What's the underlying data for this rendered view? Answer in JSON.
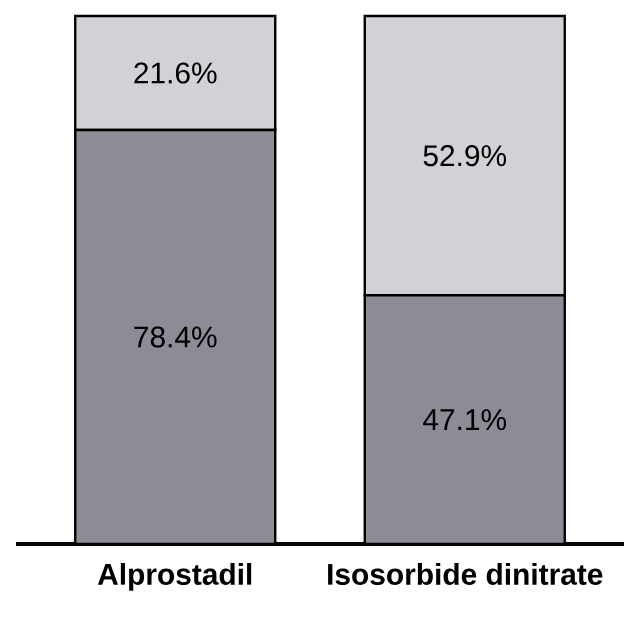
{
  "chart_data": {
    "type": "bar",
    "stacked": true,
    "categories": [
      "Alprostadil",
      "Isosorbide dinitrate"
    ],
    "ylim": [
      0,
      100
    ],
    "series": [
      {
        "color": "#8c8c96",
        "values": [
          78.4,
          47.1
        ],
        "value_labels": [
          "78.4%",
          "47.1%"
        ]
      },
      {
        "color": "#d2d2d6",
        "values": [
          21.6,
          52.9
        ],
        "value_labels": [
          "21.6%",
          "52.9%"
        ]
      }
    ]
  }
}
